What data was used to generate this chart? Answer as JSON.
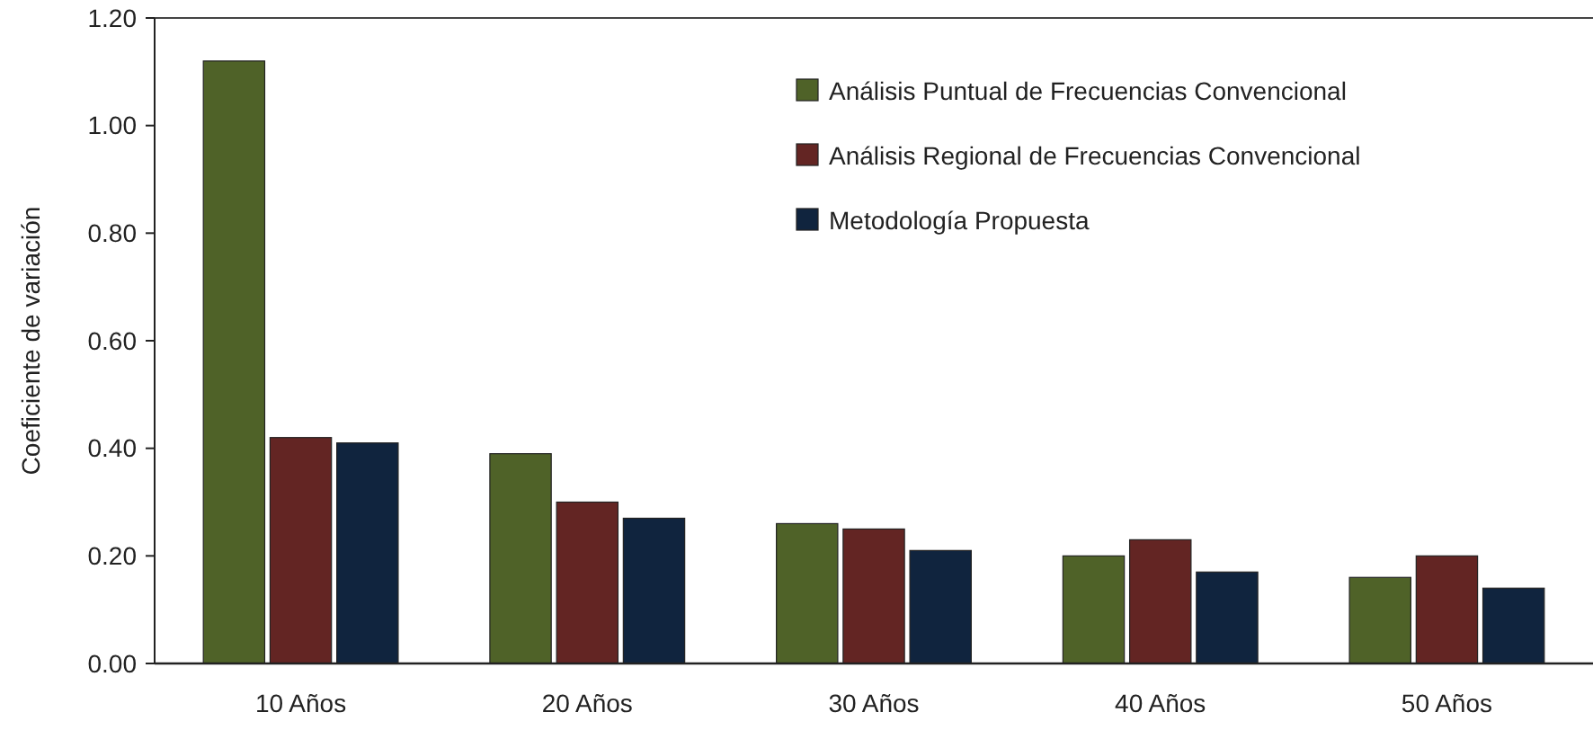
{
  "chart_data": {
    "type": "bar",
    "ylabel": "Coeficiente de variación",
    "categories": [
      "10 Años",
      "20 Años",
      "30 Años",
      "40 Años",
      "50 Años"
    ],
    "series": [
      {
        "name": "Análisis Puntual de Frecuencias Convencional",
        "color": "#4f6228",
        "values": [
          1.12,
          0.39,
          0.26,
          0.2,
          0.16
        ]
      },
      {
        "name": "Análisis Regional de Frecuencias Convencional",
        "color": "#632523",
        "values": [
          0.42,
          0.3,
          0.25,
          0.23,
          0.2
        ]
      },
      {
        "name": "Metodología Propuesta",
        "color": "#10243e",
        "values": [
          0.41,
          0.27,
          0.21,
          0.17,
          0.14
        ]
      }
    ],
    "ylim": [
      0,
      1.2
    ],
    "yticks": [
      {
        "value": 0,
        "label": "0.00"
      },
      {
        "value": 0.2,
        "label": "0.20"
      },
      {
        "value": 0.4,
        "label": "0.40"
      },
      {
        "value": 0.6,
        "label": "0.60"
      },
      {
        "value": 0.8,
        "label": "0.80"
      },
      {
        "value": 1,
        "label": "1.00"
      },
      {
        "value": 1.2,
        "label": "1.20"
      }
    ],
    "grid": false,
    "legend": "top right"
  }
}
